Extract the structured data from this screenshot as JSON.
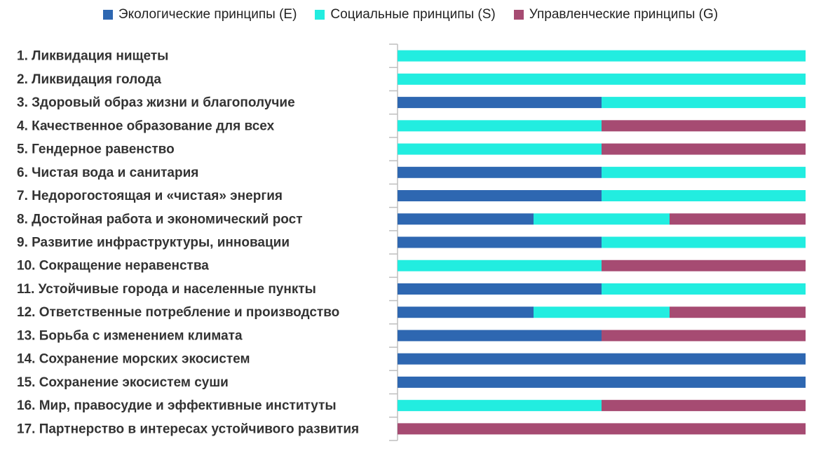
{
  "chart_data": {
    "type": "bar",
    "orientation": "horizontal",
    "stacked": "100%",
    "title": "",
    "xlabel": "",
    "ylabel": "",
    "grid": false,
    "legend_position": "top",
    "categories": [
      "1. Ликвидация нищеты",
      "2. Ликвидация голода",
      "3. Здоровый образ жизни и благополучие",
      "4. Качественное образование для всех",
      "5. Гендерное равенство",
      "6. Чистая вода и санитария",
      "7. Недорогостоящая и «чистая» энергия",
      "8. Достойная работа и экономический рост",
      "9. Развитие инфраструктуры, инновации",
      "10. Сокращение неравенства",
      "11. Устойчивые города и населенные пункты",
      "12. Ответственные потребление и производство",
      "13. Борьба с изменением климата",
      "14. Сохранение морских экосистем",
      "15. Сохранение экосистем суши",
      "16. Мир, правосудие и эффективные институты",
      "17. Партнерство в интересах устойчивого развития"
    ],
    "series": [
      {
        "name": "Экологические принципы (E)",
        "color": "#2e67b1",
        "values": [
          0,
          0,
          1,
          0,
          0,
          1,
          1,
          1,
          1,
          0,
          1,
          1,
          1,
          1,
          1,
          0,
          0
        ]
      },
      {
        "name": "Социальные принципы (S)",
        "color": "#22ede0",
        "values": [
          1,
          1,
          1,
          1,
          1,
          1,
          1,
          1,
          1,
          1,
          1,
          1,
          0,
          0,
          0,
          1,
          0
        ]
      },
      {
        "name": "Управленческие принципы (G)",
        "color": "#a64b72",
        "values": [
          0,
          0,
          0,
          1,
          1,
          0,
          0,
          1,
          0,
          1,
          0,
          1,
          1,
          0,
          0,
          1,
          1
        ]
      }
    ]
  }
}
